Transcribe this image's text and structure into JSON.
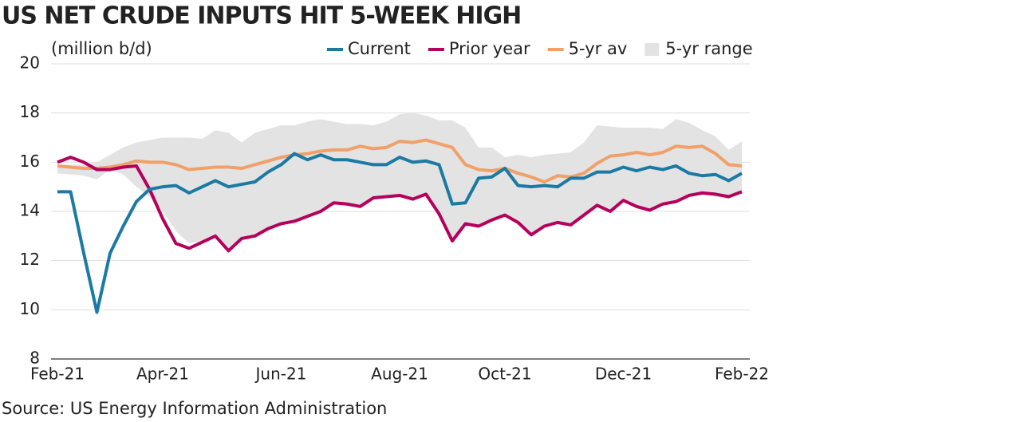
{
  "chart_data": {
    "type": "line",
    "title": "US NET CRUDE INPUTS HIT 5-WEEK HIGH",
    "y_label": "(million b/d)",
    "source": "Source: US Energy Information Administration",
    "categories": [
      "Feb-21",
      null,
      null,
      null,
      null,
      null,
      null,
      null,
      "Apr-21",
      null,
      null,
      null,
      null,
      null,
      null,
      null,
      null,
      "Jun-21",
      null,
      null,
      null,
      null,
      null,
      null,
      null,
      null,
      "Aug-21",
      null,
      null,
      null,
      null,
      null,
      null,
      null,
      "Oct-21",
      null,
      null,
      null,
      null,
      null,
      null,
      null,
      null,
      "Dec-21",
      null,
      null,
      null,
      null,
      null,
      null,
      null,
      null,
      "Feb-22"
    ],
    "ylim": [
      8,
      20
    ],
    "yticks": [
      8,
      10,
      12,
      14,
      16,
      18,
      20
    ],
    "grid": true,
    "legend": "top",
    "series": [
      {
        "name": "Current",
        "color": "#1b7aa3",
        "values": [
          14.8,
          14.8,
          12.3,
          9.9,
          12.3,
          13.4,
          14.4,
          14.9,
          15.0,
          15.05,
          14.75,
          15.0,
          15.25,
          15.0,
          15.1,
          15.2,
          15.6,
          15.9,
          16.35,
          16.1,
          16.3,
          16.1,
          16.1,
          16.0,
          15.9,
          15.9,
          16.2,
          16.0,
          16.05,
          15.9,
          14.3,
          14.35,
          15.35,
          15.4,
          15.75,
          15.05,
          15.0,
          15.05,
          15.0,
          15.35,
          15.35,
          15.6,
          15.6,
          15.8,
          15.65,
          15.8,
          15.7,
          15.85,
          15.55,
          15.45,
          15.5,
          15.25,
          15.55
        ]
      },
      {
        "name": "Prior year",
        "color": "#b5005c",
        "values": [
          16.0,
          16.2,
          16.0,
          15.7,
          15.7,
          15.8,
          15.85,
          14.9,
          13.7,
          12.7,
          12.5,
          12.75,
          13.0,
          12.4,
          12.9,
          13.0,
          13.3,
          13.5,
          13.6,
          13.8,
          14.0,
          14.35,
          14.3,
          14.2,
          14.55,
          14.6,
          14.65,
          14.5,
          14.7,
          13.9,
          12.8,
          13.5,
          13.4,
          13.65,
          13.85,
          13.55,
          13.05,
          13.4,
          13.55,
          13.45,
          13.85,
          14.25,
          14.0,
          14.45,
          14.2,
          14.05,
          14.3,
          14.4,
          14.65,
          14.75,
          14.7,
          14.6,
          14.8
        ]
      },
      {
        "name": "5-yr av",
        "color": "#f0a068",
        "values": [
          15.85,
          15.8,
          15.75,
          15.75,
          15.8,
          15.9,
          16.05,
          16.0,
          16.0,
          15.9,
          15.7,
          15.75,
          15.8,
          15.8,
          15.75,
          15.9,
          16.05,
          16.2,
          16.3,
          16.35,
          16.45,
          16.5,
          16.5,
          16.65,
          16.55,
          16.6,
          16.85,
          16.8,
          16.9,
          16.75,
          16.6,
          15.9,
          15.7,
          15.65,
          15.75,
          15.55,
          15.4,
          15.2,
          15.45,
          15.4,
          15.55,
          15.95,
          16.25,
          16.3,
          16.4,
          16.3,
          16.4,
          16.65,
          16.6,
          16.65,
          16.35,
          15.9,
          15.85
        ]
      },
      {
        "name": "5-yr range",
        "color": "#e3e3e3",
        "high": [
          15.9,
          15.9,
          15.9,
          16.0,
          16.3,
          16.6,
          16.8,
          16.9,
          17.0,
          17.0,
          17.0,
          16.95,
          17.3,
          17.2,
          16.8,
          17.2,
          17.35,
          17.5,
          17.5,
          17.65,
          17.75,
          17.65,
          17.55,
          17.55,
          17.5,
          17.65,
          17.95,
          18.0,
          17.9,
          17.7,
          17.7,
          17.4,
          16.6,
          16.6,
          16.2,
          16.3,
          16.2,
          16.3,
          16.35,
          16.4,
          16.8,
          17.5,
          17.45,
          17.4,
          17.4,
          17.4,
          17.35,
          17.75,
          17.6,
          17.3,
          17.05,
          16.5,
          16.85
        ],
        "low": [
          15.55,
          15.5,
          15.45,
          15.3,
          15.7,
          15.5,
          15.0,
          14.6,
          14.0,
          13.2,
          12.7,
          12.8,
          12.9,
          12.5,
          12.9,
          13.0,
          13.3,
          13.5,
          13.6,
          13.8,
          14.0,
          14.3,
          14.3,
          14.2,
          14.5,
          14.6,
          14.6,
          14.5,
          14.6,
          13.9,
          12.8,
          13.5,
          13.4,
          13.6,
          13.8,
          13.5,
          13.05,
          13.4,
          13.5,
          13.4,
          13.8,
          14.2,
          14.0,
          14.4,
          14.2,
          14.0,
          14.3,
          14.35,
          14.6,
          14.7,
          14.6,
          14.5,
          14.8
        ]
      }
    ]
  }
}
